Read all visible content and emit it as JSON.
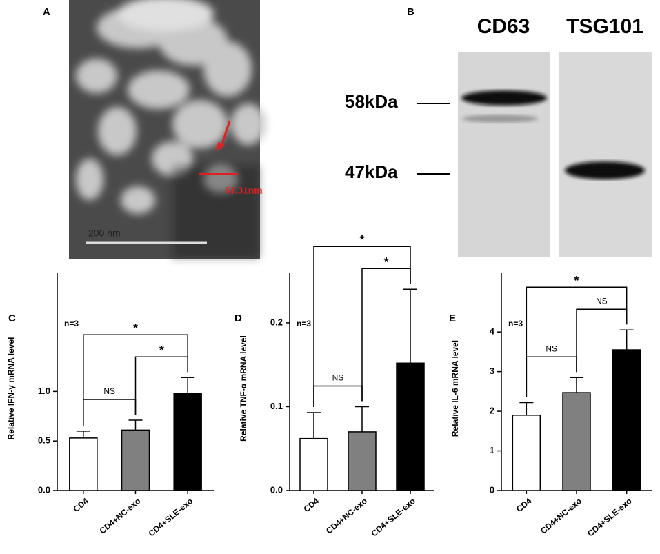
{
  "panel_a": {
    "label": "A",
    "scale_bar": "200 nm",
    "measurement": "61.31nm"
  },
  "panel_b": {
    "label": "B",
    "lanes": [
      "CD63",
      "TSG101"
    ],
    "markers": [
      "58kDa",
      "47kDa"
    ]
  },
  "chart_data": [
    {
      "type": "bar",
      "label": "C",
      "annotation": "n=3",
      "ylabel": "Relative IFN-γ mRNA level",
      "categories": [
        "CD4",
        "CD4+NC-exo",
        "CD4+SLE-exo"
      ],
      "values": [
        0.53,
        0.61,
        0.98
      ],
      "errors": [
        0.07,
        0.1,
        0.16
      ],
      "colors": [
        "#ffffff",
        "#808080",
        "#000000"
      ],
      "ylim": [
        0,
        2.2
      ],
      "yticks": [
        {
          "value": 0,
          "label": "0.0"
        },
        0.5,
        {
          "value": 1,
          "label": "1.0"
        }
      ],
      "comparisons": [
        {
          "groups": [
            0,
            1
          ],
          "label": "NS"
        },
        {
          "groups": [
            1,
            2
          ],
          "label": "*"
        },
        {
          "groups": [
            0,
            2
          ],
          "label": "*"
        }
      ]
    },
    {
      "type": "bar",
      "label": "D",
      "annotation": "n=3",
      "ylabel": "Relative TNF-α mRNA level",
      "categories": [
        "CD4",
        "CD4+NC-exo",
        "CD4+SLE-exo"
      ],
      "values": [
        0.062,
        0.07,
        0.152
      ],
      "errors": [
        0.031,
        0.03,
        0.088
      ],
      "colors": [
        "#ffffff",
        "#808080",
        "#000000"
      ],
      "ylim": [
        0,
        0.26
      ],
      "yticks": [
        {
          "value": 0,
          "label": "0.0"
        },
        0.1,
        0.2
      ],
      "comparisons": [
        {
          "groups": [
            0,
            1
          ],
          "label": "NS"
        },
        {
          "groups": [
            1,
            2
          ],
          "label": "*"
        },
        {
          "groups": [
            0,
            2
          ],
          "label": "*"
        }
      ]
    },
    {
      "type": "bar",
      "label": "E",
      "annotation": "n=3",
      "ylabel": "Relative IL-6 mRNA level",
      "categories": [
        "CD4",
        "CD4+NC-exo",
        "CD4+SLE-exo"
      ],
      "values": [
        1.9,
        2.47,
        3.55
      ],
      "errors": [
        0.32,
        0.38,
        0.5
      ],
      "colors": [
        "#ffffff",
        "#808080",
        "#000000"
      ],
      "ylim": [
        0,
        5.5
      ],
      "yticks": [
        0,
        1,
        2,
        3,
        4
      ],
      "comparisons": [
        {
          "groups": [
            0,
            1
          ],
          "label": "NS"
        },
        {
          "groups": [
            1,
            2
          ],
          "label": "NS"
        },
        {
          "groups": [
            0,
            2
          ],
          "label": "*"
        }
      ]
    }
  ]
}
